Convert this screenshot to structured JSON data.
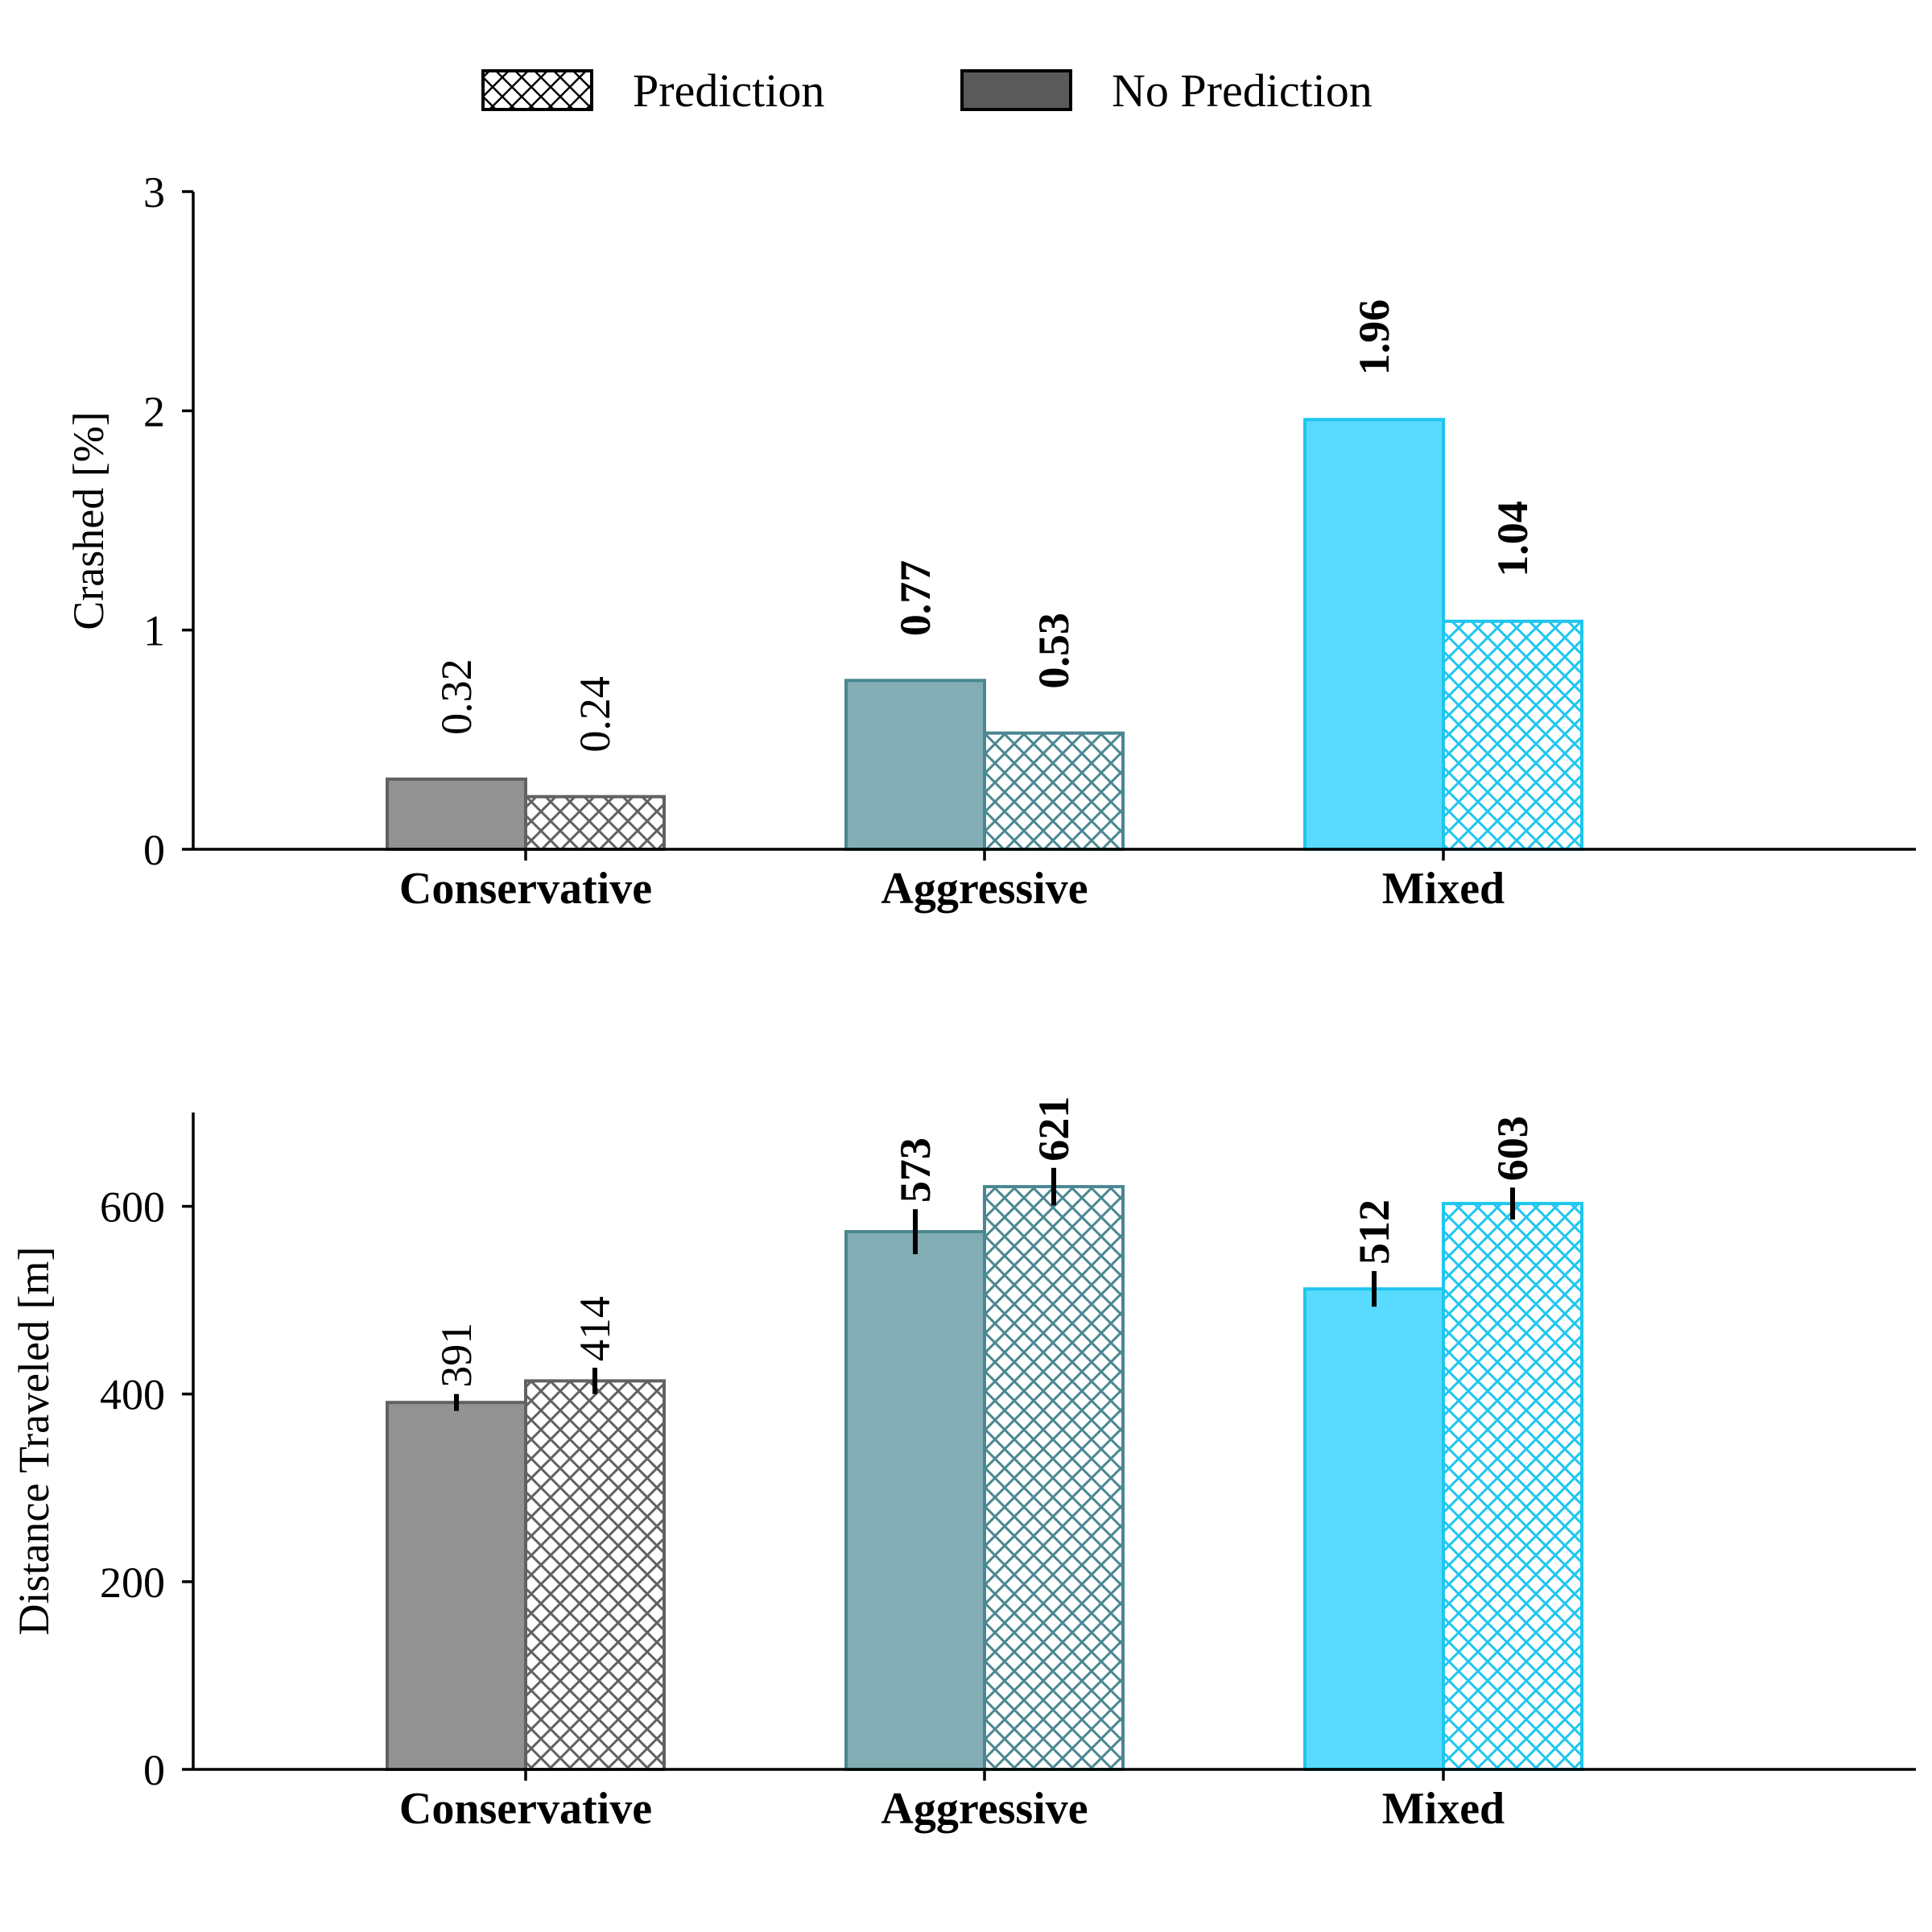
{
  "legend": {
    "items": [
      {
        "label": "Prediction",
        "style": "hatched"
      },
      {
        "label": "No Prediction",
        "style": "solid"
      }
    ]
  },
  "colors": {
    "conservative_fill": "#929292",
    "conservative_edge": "#616161",
    "aggressive_fill": "#83adb5",
    "aggressive_edge": "#4a8791",
    "mixed_fill": "#58dbff",
    "mixed_edge": "#1fc6ef",
    "legend_solid": "#5a5a5a",
    "axis": "#000000"
  },
  "chart_data": [
    {
      "type": "bar",
      "title": "",
      "xlabel": "",
      "ylabel": "Crashed [%]",
      "ylim": [
        0,
        3
      ],
      "yticks": [
        0,
        1,
        2,
        3
      ],
      "categories": [
        "Conservative",
        "Aggressive",
        "Mixed"
      ],
      "series": [
        {
          "name": "No Prediction",
          "values": [
            0.32,
            0.77,
            1.96
          ],
          "labels": [
            "0.32",
            "0.77",
            "1.96"
          ]
        },
        {
          "name": "Prediction",
          "values": [
            0.24,
            0.53,
            1.04
          ],
          "labels": [
            "0.24",
            "0.53",
            "1.04"
          ]
        }
      ],
      "bold_labels": [
        [
          false,
          true,
          true
        ],
        [
          false,
          true,
          true
        ]
      ]
    },
    {
      "type": "bar",
      "title": "",
      "xlabel": "",
      "ylabel": "Distance Traveled [m]",
      "ylim": [
        0,
        700
      ],
      "yticks": [
        0,
        200,
        400,
        600
      ],
      "categories": [
        "Conservative",
        "Aggressive",
        "Mixed"
      ],
      "series": [
        {
          "name": "No Prediction",
          "values": [
            391,
            573,
            512
          ],
          "errors": [
            9,
            24,
            19
          ],
          "labels": [
            "391",
            "573",
            "512"
          ]
        },
        {
          "name": "Prediction",
          "values": [
            414,
            621,
            603
          ],
          "errors": [
            14,
            20,
            17
          ],
          "labels": [
            "414",
            "621",
            "603"
          ]
        }
      ],
      "bold_labels": [
        [
          false,
          true,
          true
        ],
        [
          false,
          true,
          true
        ]
      ]
    }
  ]
}
